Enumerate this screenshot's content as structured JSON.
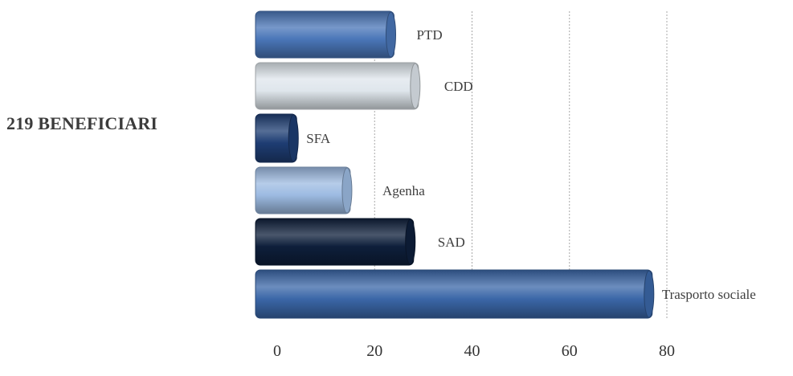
{
  "headline": "219 BENEFICIARI",
  "chart_data": {
    "type": "bar",
    "orientation": "horizontal",
    "categories": [
      "PTD",
      "CDD",
      "SFA",
      "Agenha",
      "SAD",
      "Trasporto sociale"
    ],
    "values": [
      24,
      29,
      4,
      15,
      28,
      77
    ],
    "xlim": [
      0,
      80
    ],
    "x_ticks": [
      0,
      20,
      40,
      60,
      80
    ],
    "grid": "vertical dashed",
    "legend": "none",
    "bar_colors": [
      "#4a76b8",
      "#dfe6ec",
      "#1e3d73",
      "#9dbbe2",
      "#0e1f3b",
      "#3b67a8"
    ],
    "bar_style": "3d-cylinder"
  }
}
